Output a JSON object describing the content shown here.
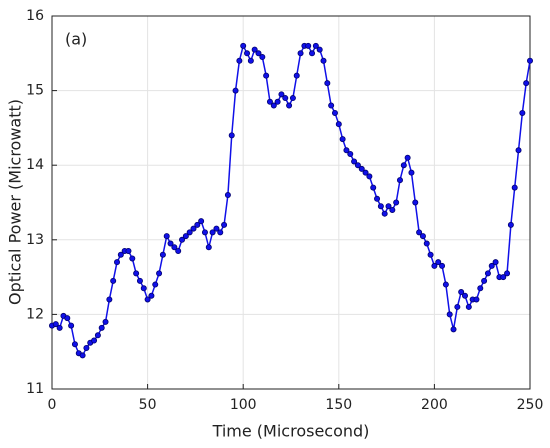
{
  "chart_data": {
    "type": "line",
    "annotation": "(a)",
    "x_label": "Time (Microsecond)",
    "y_label": "Optical Power (Microwatt)",
    "xlim": [
      0,
      250
    ],
    "xticks": [
      0,
      50,
      100,
      150,
      200,
      250
    ],
    "ylim": [
      11,
      16
    ],
    "yticks": [
      11,
      12,
      13,
      14,
      15,
      16
    ],
    "grid": true,
    "x": [
      0,
      2,
      4,
      6,
      8,
      10,
      12,
      14,
      16,
      18,
      20,
      22,
      24,
      26,
      28,
      30,
      32,
      34,
      36,
      38,
      40,
      42,
      44,
      46,
      48,
      50,
      52,
      54,
      56,
      58,
      60,
      62,
      64,
      66,
      68,
      70,
      72,
      74,
      76,
      78,
      80,
      82,
      84,
      86,
      88,
      90,
      92,
      94,
      96,
      98,
      100,
      102,
      104,
      106,
      108,
      110,
      112,
      114,
      116,
      118,
      120,
      122,
      124,
      126,
      128,
      130,
      132,
      134,
      136,
      138,
      140,
      142,
      144,
      146,
      148,
      150,
      152,
      154,
      156,
      158,
      160,
      162,
      164,
      166,
      168,
      170,
      172,
      174,
      176,
      178,
      180,
      182,
      184,
      186,
      188,
      190,
      192,
      194,
      196,
      198,
      200,
      202,
      204,
      206,
      208,
      210,
      212,
      214,
      216,
      218,
      220,
      222,
      224,
      226,
      228,
      230,
      232,
      234,
      236,
      238,
      240,
      242,
      244,
      246,
      248,
      250
    ],
    "series": [
      {
        "color": "#1010e8",
        "values": [
          11.85,
          11.87,
          11.82,
          11.98,
          11.95,
          11.85,
          11.6,
          11.48,
          11.45,
          11.55,
          11.62,
          11.65,
          11.72,
          11.82,
          11.9,
          12.2,
          12.45,
          12.7,
          12.8,
          12.85,
          12.85,
          12.75,
          12.55,
          12.45,
          12.35,
          12.2,
          12.25,
          12.4,
          12.55,
          12.8,
          13.05,
          12.95,
          12.9,
          12.85,
          13.0,
          13.05,
          13.1,
          13.15,
          13.2,
          13.25,
          13.1,
          12.9,
          13.1,
          13.15,
          13.1,
          13.2,
          13.6,
          14.4,
          15.0,
          15.4,
          15.6,
          15.5,
          15.4,
          15.55,
          15.5,
          15.45,
          15.2,
          14.85,
          14.8,
          14.85,
          14.95,
          14.9,
          14.8,
          14.9,
          15.2,
          15.5,
          15.6,
          15.6,
          15.5,
          15.6,
          15.55,
          15.4,
          15.1,
          14.8,
          14.7,
          14.55,
          14.35,
          14.2,
          14.15,
          14.05,
          14.0,
          13.95,
          13.9,
          13.85,
          13.7,
          13.55,
          13.45,
          13.35,
          13.45,
          13.4,
          13.5,
          13.8,
          14.0,
          14.1,
          13.9,
          13.5,
          13.1,
          13.05,
          12.95,
          12.8,
          12.65,
          12.7,
          12.65,
          12.4,
          12.0,
          11.8,
          12.1,
          12.3,
          12.25,
          12.1,
          12.2,
          12.2,
          12.35,
          12.45,
          12.55,
          12.65,
          12.7,
          12.5,
          12.5,
          12.55,
          13.2,
          13.7,
          14.2,
          14.7,
          15.1,
          15.4
        ]
      }
    ]
  }
}
